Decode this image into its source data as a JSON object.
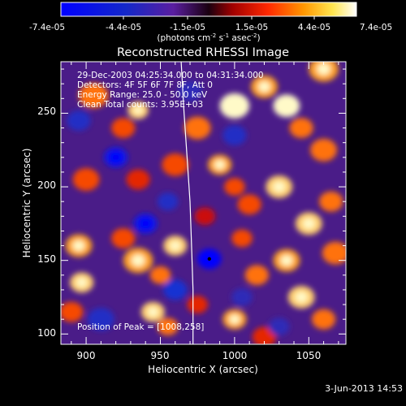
{
  "chart_data": {
    "type": "heatmap",
    "title": "Reconstructed RHESSI Image",
    "xlabel": "Heliocentric X (arcsec)",
    "ylabel": "Heliocentric Y (arcsec)",
    "xlim": [
      883,
      1075
    ],
    "ylim": [
      93,
      285
    ],
    "x_ticks": [
      900,
      950,
      1000,
      1050
    ],
    "y_ticks": [
      100,
      150,
      200,
      250
    ],
    "colorbar": {
      "ticks": [
        "-7.4e-05",
        "-4.4e-05",
        "-1.5e-05",
        "1.5e-05",
        "4.4e-05",
        "7.4e-05"
      ],
      "unit_base": "(photons cm",
      "unit_sup1": "-2",
      "unit_mid": " s",
      "unit_sup2": "-1",
      "unit_end": " asec",
      "unit_sup3": "-2",
      "unit_close": ")",
      "range": [
        -7.4e-05,
        7.4e-05
      ]
    },
    "annotations": [
      "29-Dec-2003 04:25:34.000 to 04:31:34.000",
      "Detectors: 4F 5F 6F 7F 8F, Att 0",
      "Energy Range: 25.0 - 50.0 keV",
      "Clean     Total counts: 3.95E+03"
    ],
    "peak_text": "Position of Peak = [1008,258]",
    "peak": [
      1008,
      258
    ],
    "marker": [
      983,
      151
    ],
    "limb": [
      [
        964,
        285
      ],
      [
        966,
        250
      ],
      [
        968,
        220
      ],
      [
        970,
        190
      ],
      [
        971,
        160
      ],
      [
        972,
        130
      ],
      [
        972,
        93
      ]
    ],
    "blobs": [
      {
        "x": 905,
        "y": 262,
        "v": 0.7,
        "s": 10
      },
      {
        "x": 925,
        "y": 240,
        "v": 0.6,
        "s": 8
      },
      {
        "x": 935,
        "y": 252,
        "v": 0.9,
        "s": 7
      },
      {
        "x": 900,
        "y": 205,
        "v": 0.6,
        "s": 9
      },
      {
        "x": 935,
        "y": 205,
        "v": 0.5,
        "s": 8
      },
      {
        "x": 960,
        "y": 215,
        "v": 0.6,
        "s": 9
      },
      {
        "x": 975,
        "y": 240,
        "v": 0.7,
        "s": 9
      },
      {
        "x": 990,
        "y": 215,
        "v": 0.8,
        "s": 8
      },
      {
        "x": 1000,
        "y": 255,
        "v": 1.0,
        "s": 10
      },
      {
        "x": 1020,
        "y": 268,
        "v": 0.8,
        "s": 9
      },
      {
        "x": 1035,
        "y": 255,
        "v": 1.0,
        "s": 9
      },
      {
        "x": 1045,
        "y": 240,
        "v": 0.7,
        "s": 8
      },
      {
        "x": 1060,
        "y": 280,
        "v": 0.8,
        "s": 10
      },
      {
        "x": 1060,
        "y": 225,
        "v": 0.7,
        "s": 9
      },
      {
        "x": 1030,
        "y": 200,
        "v": 0.9,
        "s": 9
      },
      {
        "x": 1010,
        "y": 188,
        "v": 0.6,
        "s": 8
      },
      {
        "x": 1000,
        "y": 200,
        "v": 0.6,
        "s": 7
      },
      {
        "x": 1050,
        "y": 175,
        "v": 0.9,
        "s": 9
      },
      {
        "x": 1065,
        "y": 190,
        "v": 0.7,
        "s": 8
      },
      {
        "x": 1068,
        "y": 155,
        "v": 0.7,
        "s": 9
      },
      {
        "x": 1035,
        "y": 150,
        "v": 0.8,
        "s": 9
      },
      {
        "x": 1015,
        "y": 140,
        "v": 0.7,
        "s": 8
      },
      {
        "x": 1005,
        "y": 165,
        "v": 0.6,
        "s": 7
      },
      {
        "x": 1045,
        "y": 125,
        "v": 0.9,
        "s": 9
      },
      {
        "x": 1060,
        "y": 110,
        "v": 0.7,
        "s": 8
      },
      {
        "x": 1000,
        "y": 110,
        "v": 0.8,
        "s": 8
      },
      {
        "x": 1020,
        "y": 98,
        "v": 0.5,
        "s": 8
      },
      {
        "x": 935,
        "y": 150,
        "v": 0.8,
        "s": 10
      },
      {
        "x": 960,
        "y": 160,
        "v": 0.9,
        "s": 8
      },
      {
        "x": 950,
        "y": 140,
        "v": 0.7,
        "s": 7
      },
      {
        "x": 925,
        "y": 165,
        "v": 0.6,
        "s": 8
      },
      {
        "x": 895,
        "y": 160,
        "v": 0.8,
        "s": 9
      },
      {
        "x": 897,
        "y": 135,
        "v": 0.9,
        "s": 8
      },
      {
        "x": 890,
        "y": 115,
        "v": 0.6,
        "s": 8
      },
      {
        "x": 945,
        "y": 115,
        "v": 0.9,
        "s": 8
      },
      {
        "x": 955,
        "y": 105,
        "v": 0.7,
        "s": 7
      },
      {
        "x": 975,
        "y": 120,
        "v": 0.5,
        "s": 7
      },
      {
        "x": 980,
        "y": 180,
        "v": 0.4,
        "s": 7
      },
      {
        "x": 940,
        "y": 175,
        "v": -0.8,
        "s": 8
      },
      {
        "x": 983,
        "y": 151,
        "v": -1.0,
        "s": 8
      },
      {
        "x": 920,
        "y": 220,
        "v": -0.8,
        "s": 8
      },
      {
        "x": 895,
        "y": 245,
        "v": -0.5,
        "s": 8
      },
      {
        "x": 960,
        "y": 130,
        "v": -0.6,
        "s": 8
      },
      {
        "x": 910,
        "y": 110,
        "v": -0.5,
        "s": 9
      },
      {
        "x": 970,
        "y": 265,
        "v": -0.4,
        "s": 8
      },
      {
        "x": 1000,
        "y": 235,
        "v": -0.5,
        "s": 8
      },
      {
        "x": 1005,
        "y": 125,
        "v": -0.4,
        "s": 7
      },
      {
        "x": 1030,
        "y": 105,
        "v": -0.4,
        "s": 7
      },
      {
        "x": 955,
        "y": 190,
        "v": -0.5,
        "s": 7
      }
    ]
  },
  "footer": {
    "date": "3-Jun-2013 14:53"
  }
}
